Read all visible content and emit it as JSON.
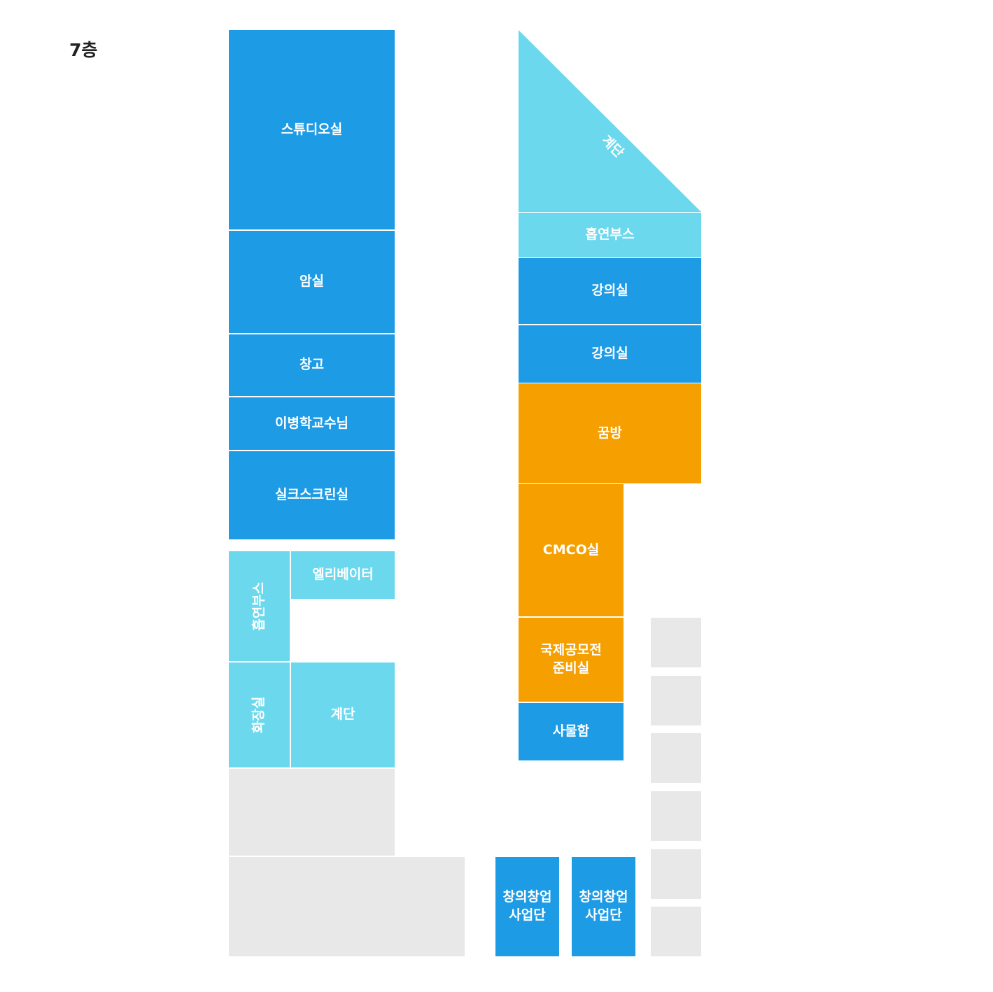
{
  "floor": "7층",
  "colors": {
    "blue": "#1e9be5",
    "light_blue": "#6bd8ee",
    "orange": "#f5a000",
    "gray": "#e8e8e8"
  },
  "rooms": {
    "studio": "스튜디오실",
    "darkroom": "암실",
    "storage": "창고",
    "professor_office": "이병학교수님",
    "silkscreen": "실크스크린실",
    "smoking_booth_left": "흡연부스",
    "elevator": "엘리베이터",
    "restroom": "화장실",
    "stairs_left": "계단",
    "stairs_right": "계단",
    "smoking_booth_right": "흡연부스",
    "lecture_room_1": "강의실",
    "lecture_room_2": "강의실",
    "ggumbang": "꿈방",
    "cmco": "CMCO실",
    "contest_prep": "국제공모전\n준비실",
    "lockers": "사물함",
    "startup_1": "창의창업\n사업단",
    "startup_2": "창의창업\n사업단"
  }
}
